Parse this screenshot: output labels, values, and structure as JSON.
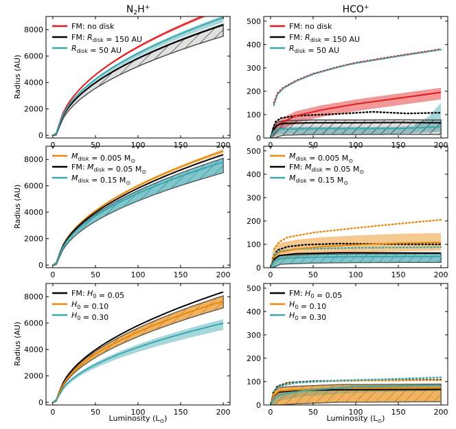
{
  "columns": [
    "N",
    "2",
    "H",
    "+",
    "HCO",
    "+"
  ],
  "xlabel": "Luminosity (L",
  "sun_symbol": "⊙",
  "close_paren": ")",
  "ylabel": "Radius (AU)",
  "colors": {
    "red": "#e31a1c",
    "black": "#000000",
    "teal": "#3aa6b0",
    "orange": "#e8890c",
    "gray": "#666666"
  },
  "rows": [
    {
      "legend": [
        {
          "color": "#e31a1c",
          "parts": [
            {
              "t": "FM: no disk",
              "s": "n"
            }
          ]
        },
        {
          "color": "#000000",
          "parts": [
            {
              "t": "FM: ",
              "s": "n"
            },
            {
              "t": "R",
              "s": "i"
            },
            {
              "t": "disk",
              "s": "sub"
            },
            {
              "t": " = 150 AU",
              "s": "n"
            }
          ]
        },
        {
          "color": "#3aa6b0",
          "parts": [
            {
              "t": "R",
              "s": "i"
            },
            {
              "t": "disk",
              "s": "sub"
            },
            {
              "t": " = 50 AU",
              "s": "n"
            }
          ]
        }
      ]
    },
    {
      "legend": [
        {
          "color": "#e8890c",
          "parts": [
            {
              "t": "M",
              "s": "i"
            },
            {
              "t": "disk",
              "s": "sub"
            },
            {
              "t": " = 0.005 M",
              "s": "n"
            },
            {
              "t": "⊙",
              "s": "sub"
            }
          ]
        },
        {
          "color": "#000000",
          "parts": [
            {
              "t": "FM: ",
              "s": "n"
            },
            {
              "t": "M",
              "s": "i"
            },
            {
              "t": "disk",
              "s": "sub"
            },
            {
              "t": " = 0.05 M",
              "s": "n"
            },
            {
              "t": "⊙",
              "s": "sub"
            }
          ]
        },
        {
          "color": "#3aa6b0",
          "parts": [
            {
              "t": "M",
              "s": "i"
            },
            {
              "t": "disk",
              "s": "sub"
            },
            {
              "t": " = 0.15 M",
              "s": "n"
            },
            {
              "t": "⊙",
              "s": "sub"
            }
          ]
        }
      ]
    },
    {
      "legend": [
        {
          "color": "#000000",
          "parts": [
            {
              "t": "FM: ",
              "s": "n"
            },
            {
              "t": "H",
              "s": "i"
            },
            {
              "t": "0",
              "s": "sub"
            },
            {
              "t": " = 0.05",
              "s": "n"
            }
          ]
        },
        {
          "color": "#e8890c",
          "parts": [
            {
              "t": "H",
              "s": "i"
            },
            {
              "t": "0",
              "s": "sub"
            },
            {
              "t": " = 0.10",
              "s": "n"
            }
          ]
        },
        {
          "color": "#3aa6b0",
          "parts": [
            {
              "t": "H",
              "s": "i"
            },
            {
              "t": "0",
              "s": "sub"
            },
            {
              "t": " = 0.30",
              "s": "n"
            }
          ]
        }
      ]
    }
  ],
  "chart_data": [
    {
      "type": "line",
      "title": "N2H+",
      "panel": "row1-left",
      "xlim": [
        -8,
        208
      ],
      "ylim": [
        -200,
        9000
      ],
      "xticks": [
        0,
        50,
        100,
        150,
        200
      ],
      "yticks": [
        0,
        2000,
        4000,
        6000,
        8000
      ],
      "hatched": "black",
      "series": [
        {
          "name": "FM: no disk",
          "color": "#e31a1c",
          "amp": 690,
          "bandPlus": 130,
          "bandMinus": 120
        },
        {
          "name": "FM: R_disk = 150 AU",
          "color": "#000000",
          "amp": 600,
          "bandPlus": 60,
          "bandMinus": 840
        },
        {
          "name": "R_disk = 50 AU",
          "color": "#3aa6b0",
          "amp": 640,
          "bandPlus": 150,
          "bandMinus": 350
        }
      ]
    },
    {
      "type": "line",
      "title": "HCO+",
      "panel": "row1-right",
      "xlim": [
        -8,
        208
      ],
      "ylim": [
        0,
        520
      ],
      "xticks": [
        0,
        50,
        100,
        150,
        200
      ],
      "yticks": [
        0,
        100,
        200,
        300,
        400,
        500
      ],
      "hatched": "black",
      "series": [
        {
          "name": "FM: no disk",
          "color": "#e31a1c",
          "solid": [
            [
              0,
              0
            ],
            [
              4,
              35
            ],
            [
              10,
              60
            ],
            [
              30,
              95
            ],
            [
              60,
              120
            ],
            [
              100,
              145
            ],
            [
              150,
              170
            ],
            [
              200,
              195
            ]
          ],
          "bandPlus": 20,
          "bandMinus": 30,
          "dotted": [
            [
              4,
              150
            ],
            [
              8,
              190
            ],
            [
              15,
              215
            ],
            [
              30,
              245
            ],
            [
              50,
              275
            ],
            [
              80,
              305
            ],
            [
              100,
              322
            ],
            [
              150,
              352
            ],
            [
              200,
              380
            ]
          ]
        },
        {
          "name": "FM: R_disk = 150 AU",
          "color": "#000000",
          "solid": [
            [
              0,
              0
            ],
            [
              4,
              40
            ],
            [
              8,
              55
            ],
            [
              15,
              62
            ],
            [
              50,
              65
            ],
            [
              100,
              65
            ],
            [
              150,
              66
            ],
            [
              200,
              65
            ]
          ],
          "bandPlus": 12,
          "bandMinus": 50,
          "dotted": [
            [
              3,
              40
            ],
            [
              6,
              70
            ],
            [
              12,
              85
            ],
            [
              30,
              95
            ],
            [
              80,
              103
            ],
            [
              120,
              112
            ],
            [
              160,
              105
            ],
            [
              200,
              108
            ]
          ]
        },
        {
          "name": "R_disk = 50 AU",
          "color": "#3aa6b0",
          "solid": [
            [
              0,
              0
            ],
            [
              4,
              30
            ],
            [
              10,
              38
            ],
            [
              50,
              40
            ],
            [
              100,
              40
            ],
            [
              150,
              40
            ],
            [
              180,
              45
            ],
            [
              200,
              48
            ]
          ],
          "bandPlus": 8,
          "bandMinus": 22,
          "bandTop": [
            [
              170,
              60
            ],
            [
              185,
              90
            ],
            [
              200,
              150
            ]
          ],
          "dotted": [
            [
              4,
              140
            ],
            [
              8,
              185
            ],
            [
              15,
              212
            ],
            [
              30,
              243
            ],
            [
              50,
              273
            ],
            [
              80,
              304
            ],
            [
              100,
              320
            ],
            [
              150,
              350
            ],
            [
              200,
              378
            ]
          ]
        }
      ]
    },
    {
      "type": "line",
      "title": "",
      "panel": "row2-left",
      "xlim": [
        -8,
        208
      ],
      "ylim": [
        -200,
        9000
      ],
      "xticks": [
        0,
        50,
        100,
        150,
        200
      ],
      "yticks": [
        0,
        2000,
        4000,
        6000,
        8000
      ],
      "hatched": "teal",
      "series": [
        {
          "name": "M_disk = 0.005 Msun",
          "color": "#e8890c",
          "amp": 620,
          "bandPlus": 120,
          "bandMinus": 150
        },
        {
          "name": "FM: M_disk = 0.05 Msun",
          "color": "#000000",
          "amp": 600,
          "bandPlus": 60,
          "bandMinus": 700
        },
        {
          "name": "M_disk = 0.15 Msun",
          "color": "#3aa6b0",
          "amp": 560,
          "bandPlus": 280,
          "bandMinus": 800
        }
      ]
    },
    {
      "type": "line",
      "title": "",
      "panel": "row2-right",
      "xlim": [
        -8,
        208
      ],
      "ylim": [
        0,
        520
      ],
      "xticks": [
        0,
        50,
        100,
        150,
        200
      ],
      "yticks": [
        0,
        100,
        200,
        300,
        400,
        500
      ],
      "hatched": "teal",
      "series": [
        {
          "name": "M_disk = 0.005 Msun",
          "color": "#e8890c",
          "solid": [
            [
              0,
              0
            ],
            [
              4,
              45
            ],
            [
              10,
              65
            ],
            [
              30,
              80
            ],
            [
              60,
              90
            ],
            [
              100,
              98
            ],
            [
              150,
              105
            ],
            [
              200,
              108
            ]
          ],
          "bandPlus": 40,
          "bandMinus": 35,
          "dotted": [
            [
              4,
              80
            ],
            [
              10,
              110
            ],
            [
              20,
              130
            ],
            [
              50,
              150
            ],
            [
              100,
              170
            ],
            [
              150,
              188
            ],
            [
              200,
              205
            ]
          ]
        },
        {
          "name": "FM: M_disk = 0.05 Msun",
          "color": "#000000",
          "solid": [
            [
              0,
              0
            ],
            [
              4,
              35
            ],
            [
              10,
              52
            ],
            [
              30,
              60
            ],
            [
              80,
              64
            ],
            [
              200,
              63
            ]
          ],
          "bandPlus": 10,
          "bandMinus": 40,
          "dotted": [
            [
              3,
              40
            ],
            [
              8,
              75
            ],
            [
              20,
              90
            ],
            [
              40,
              98
            ],
            [
              80,
              103
            ],
            [
              120,
              102
            ],
            [
              160,
              100
            ],
            [
              200,
              100
            ]
          ]
        },
        {
          "name": "M_disk = 0.15 Msun",
          "color": "#3aa6b0",
          "solid": [
            [
              0,
              0
            ],
            [
              4,
              28
            ],
            [
              12,
              40
            ],
            [
              50,
              45
            ],
            [
              100,
              47
            ],
            [
              200,
              48
            ]
          ],
          "bandPlus": 12,
          "bandMinus": 25,
          "dotted": [
            [
              4,
              55
            ],
            [
              10,
              70
            ],
            [
              30,
              80
            ],
            [
              100,
              85
            ],
            [
              200,
              88
            ]
          ]
        }
      ]
    },
    {
      "type": "line",
      "title": "",
      "panel": "row3-left",
      "xlim": [
        -8,
        208
      ],
      "ylim": [
        -200,
        9000
      ],
      "xticks": [
        0,
        50,
        100,
        150,
        200
      ],
      "yticks": [
        0,
        2000,
        4000,
        6000,
        8000
      ],
      "hatched": "orange",
      "series": [
        {
          "name": "FM: H0 = 0.05",
          "color": "#000000",
          "amp": 600,
          "bandPlus": 80,
          "bandMinus": 220
        },
        {
          "name": "H0 = 0.10",
          "color": "#e8890c",
          "amp": 550,
          "bandPlus": 400,
          "bandMinus": 500
        },
        {
          "name": "H0 = 0.30",
          "color": "#3aa6b0",
          "amp": 430,
          "bandPlus": 300,
          "bandMinus": 500
        }
      ]
    },
    {
      "type": "line",
      "title": "",
      "panel": "row3-right",
      "xlim": [
        -8,
        208
      ],
      "ylim": [
        0,
        520
      ],
      "xticks": [
        0,
        50,
        100,
        150,
        200
      ],
      "yticks": [
        0,
        100,
        200,
        300,
        400,
        500
      ],
      "hatched": "orange",
      "series": [
        {
          "name": "FM: H0 = 0.05",
          "color": "#000000",
          "solid": [
            [
              0,
              0
            ],
            [
              4,
              38
            ],
            [
              10,
              55
            ],
            [
              30,
              62
            ],
            [
              80,
              65
            ],
            [
              200,
              66
            ]
          ],
          "bandPlus": 10,
          "bandMinus": 20,
          "dotted": [
            [
              3,
              50
            ],
            [
              8,
              80
            ],
            [
              20,
              95
            ],
            [
              50,
              102
            ],
            [
              100,
              105
            ],
            [
              200,
              108
            ]
          ]
        },
        {
          "name": "H0 = 0.10",
          "color": "#e8890c",
          "solid": [
            [
              0,
              0
            ],
            [
              4,
              40
            ],
            [
              10,
              60
            ],
            [
              30,
              65
            ],
            [
              80,
              72
            ],
            [
              200,
              74
            ]
          ],
          "bandPlus": 15,
          "bandMinus": 60,
          "dotted": [
            [
              3,
              45
            ],
            [
              8,
              75
            ],
            [
              20,
              92
            ],
            [
              50,
              100
            ],
            [
              100,
              104
            ],
            [
              200,
              106
            ]
          ]
        },
        {
          "name": "H0 = 0.30",
          "color": "#3aa6b0",
          "solid": [
            [
              0,
              0
            ],
            [
              4,
              25
            ],
            [
              12,
              45
            ],
            [
              40,
              62
            ],
            [
              100,
              78
            ],
            [
              200,
              85
            ]
          ],
          "bandPlus": 8,
          "bandMinus": 25,
          "dotted": [
            [
              4,
              60
            ],
            [
              10,
              80
            ],
            [
              30,
              95
            ],
            [
              80,
              105
            ],
            [
              150,
              112
            ],
            [
              200,
              118
            ]
          ]
        }
      ]
    }
  ]
}
